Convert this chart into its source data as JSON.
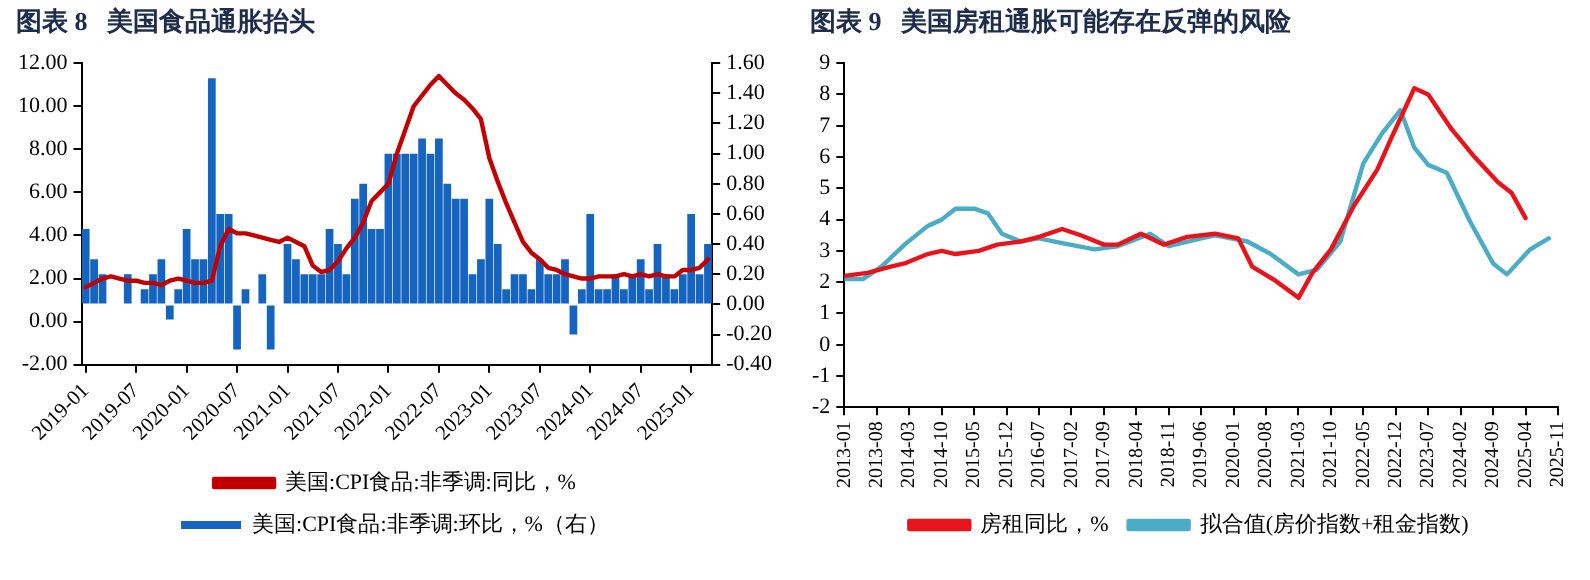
{
  "chart_data": [
    {
      "type": "bar",
      "title": "图表 8   美国食品通胀抬头",
      "categories": [
        "2019-01",
        null,
        null,
        null,
        null,
        null,
        "2019-07",
        null,
        null,
        null,
        null,
        null,
        "2020-01",
        null,
        null,
        null,
        null,
        null,
        "2020-07",
        null,
        null,
        null,
        null,
        null,
        "2021-01",
        null,
        null,
        null,
        null,
        null,
        "2021-07",
        null,
        null,
        null,
        null,
        null,
        "2022-01",
        null,
        null,
        null,
        null,
        null,
        "2022-07",
        null,
        null,
        null,
        null,
        null,
        "2023-01",
        null,
        null,
        null,
        null,
        null,
        "2023-07",
        null,
        null,
        null,
        null,
        null,
        "2024-01",
        null,
        null,
        null,
        null,
        null,
        "2024-07",
        null,
        null,
        null,
        null,
        null,
        "2025-01",
        null,
        null
      ],
      "series": [
        {
          "type": "bar",
          "axis": "y2",
          "name": "美国:CPI食品:非季调:环比，%（右）",
          "color": "#1565c0",
          "values": [
            0.5,
            0.3,
            0.2,
            0.0,
            0.0,
            0.2,
            0.0,
            0.1,
            0.2,
            0.3,
            -0.1,
            0.1,
            0.5,
            0.3,
            0.3,
            1.5,
            0.6,
            0.6,
            -0.3,
            0.1,
            0.0,
            0.2,
            -0.3,
            0.0,
            0.4,
            0.3,
            0.2,
            0.2,
            0.2,
            0.5,
            0.4,
            0.2,
            0.7,
            0.8,
            0.5,
            0.5,
            1.0,
            1.0,
            1.0,
            1.0,
            1.1,
            1.0,
            1.1,
            0.8,
            0.7,
            0.7,
            0.2,
            0.3,
            0.7,
            0.4,
            0.1,
            0.2,
            0.2,
            0.1,
            0.3,
            0.2,
            0.2,
            0.3,
            -0.2,
            0.1,
            0.6,
            0.1,
            0.1,
            0.2,
            0.1,
            0.2,
            0.3,
            0.1,
            0.4,
            0.2,
            0.1,
            0.2,
            0.6,
            0.2,
            0.4
          ]
        },
        {
          "type": "line",
          "name": "美国:CPI食品:非季调:同比，%",
          "color": "#c00000",
          "values": [
            1.6,
            1.8,
            2.0,
            2.1,
            2.0,
            1.9,
            1.9,
            1.8,
            1.8,
            1.7,
            1.9,
            2.0,
            1.9,
            1.8,
            1.8,
            1.9,
            3.5,
            4.3,
            4.1,
            4.1,
            4.0,
            3.9,
            3.8,
            3.7,
            3.9,
            3.7,
            3.5,
            2.6,
            2.3,
            2.4,
            2.8,
            3.4,
            3.9,
            4.6,
            5.6,
            6.0,
            6.4,
            7.8,
            8.9,
            10.0,
            10.5,
            11.0,
            11.4,
            11.0,
            10.6,
            10.3,
            9.9,
            9.4,
            7.6,
            6.5,
            5.5,
            4.6,
            3.7,
            3.2,
            2.9,
            2.5,
            2.4,
            2.2,
            2.1,
            2.0,
            2.0,
            2.1,
            2.1,
            2.1,
            2.2,
            2.1,
            2.2,
            2.1,
            2.2,
            2.1,
            2.1,
            2.4,
            2.4,
            2.5,
            2.9
          ]
        }
      ],
      "ylim": [
        -2,
        12
      ],
      "yticks": [
        {
          "value": -2,
          "label": "-2.00"
        },
        {
          "value": 0,
          "label": "0.00"
        },
        {
          "value": 2,
          "label": "2.00"
        },
        {
          "value": 4,
          "label": "4.00"
        },
        {
          "value": 6,
          "label": "6.00"
        },
        {
          "value": 8,
          "label": "8.00"
        },
        {
          "value": 10,
          "label": "10.00"
        },
        {
          "value": 12,
          "label": "12.00"
        }
      ],
      "y2lim": [
        -0.4,
        1.6
      ],
      "y2ticks": [
        {
          "value": -0.4,
          "label": "-0.40"
        },
        {
          "value": -0.2,
          "label": "-0.20"
        },
        {
          "value": 0,
          "label": "0.00"
        },
        {
          "value": 0.2,
          "label": "0.20"
        },
        {
          "value": 0.4,
          "label": "0.40"
        },
        {
          "value": 0.6,
          "label": "0.60"
        },
        {
          "value": 0.8,
          "label": "0.80"
        },
        {
          "value": 1.0,
          "label": "1.00"
        },
        {
          "value": 1.2,
          "label": "1.20"
        },
        {
          "value": 1.4,
          "label": "1.40"
        },
        {
          "value": 1.6,
          "label": "1.60"
        }
      ],
      "legend": "bottom",
      "grid": false,
      "marker": "none"
    },
    {
      "type": "line",
      "title": "图表 9   美国房租通胀可能存在反弹的风险",
      "series": [
        {
          "name": "房租同比，%",
          "color": "#e8141c",
          "x": [
            "2013-01",
            "2013-06",
            "2013-11",
            "2014-02",
            "2014-07",
            "2014-10",
            "2015-01",
            "2015-06",
            "2015-10",
            "2016-03",
            "2016-07",
            "2016-12",
            "2017-04",
            "2017-09",
            "2017-12",
            "2018-05",
            "2018-10",
            "2019-03",
            "2019-09",
            "2020-02",
            "2020-05",
            "2020-10",
            "2021-03",
            "2021-06",
            "2021-10",
            "2022-03",
            "2022-08",
            "2022-11",
            "2023-04",
            "2023-07",
            "2023-12",
            "2024-05",
            "2024-10",
            "2025-01",
            "2025-04"
          ],
          "values": [
            2.2,
            2.3,
            2.5,
            2.6,
            2.9,
            3.0,
            2.9,
            3.0,
            3.2,
            3.3,
            3.45,
            3.7,
            3.5,
            3.2,
            3.2,
            3.55,
            3.2,
            3.45,
            3.55,
            3.4,
            2.5,
            2.05,
            1.5,
            2.3,
            3.05,
            4.45,
            5.6,
            6.6,
            8.2,
            8.0,
            6.9,
            6.0,
            5.2,
            4.85,
            4.05
          ]
        },
        {
          "name": "拟合值(房价指数+租金指数)",
          "color": "#4bacc6",
          "x": [
            "2013-01",
            "2013-05",
            "2013-09",
            "2014-02",
            "2014-07",
            "2014-10",
            "2015-01",
            "2015-05",
            "2015-08",
            "2015-11",
            "2016-03",
            "2016-07",
            "2016-12",
            "2017-07",
            "2017-12",
            "2018-07",
            "2018-11",
            "2019-06",
            "2019-09",
            "2020-04",
            "2020-09",
            "2021-03",
            "2021-07",
            "2021-12",
            "2022-05",
            "2022-09",
            "2023-01",
            "2023-04",
            "2023-07",
            "2023-11",
            "2024-04",
            "2024-09",
            "2024-12",
            "2025-05",
            "2025-09"
          ],
          "values": [
            2.1,
            2.1,
            2.5,
            3.2,
            3.8,
            4.0,
            4.35,
            4.35,
            4.2,
            3.55,
            3.3,
            3.4,
            3.25,
            3.05,
            3.15,
            3.55,
            3.15,
            3.4,
            3.5,
            3.3,
            2.9,
            2.25,
            2.4,
            3.3,
            5.8,
            6.75,
            7.5,
            6.3,
            5.75,
            5.5,
            3.95,
            2.6,
            2.25,
            3.05,
            3.4
          ]
        }
      ],
      "xlim": [
        "2013-01",
        "2025-11"
      ],
      "xticks": [
        "2013-01",
        "2013-08",
        "2014-03",
        "2014-10",
        "2015-05",
        "2015-12",
        "2016-07",
        "2017-02",
        "2017-09",
        "2018-04",
        "2018-11",
        "2019-06",
        "2020-01",
        "2020-08",
        "2021-03",
        "2021-10",
        "2022-05",
        "2022-12",
        "2023-07",
        "2024-02",
        "2024-09",
        "2025-04",
        "2025-11"
      ],
      "ylim": [
        -2,
        9
      ],
      "yticks": [
        -2,
        -1,
        0,
        1,
        2,
        3,
        4,
        5,
        6,
        7,
        8,
        9
      ],
      "legend": "bottom",
      "grid": false,
      "marker": "none"
    }
  ]
}
